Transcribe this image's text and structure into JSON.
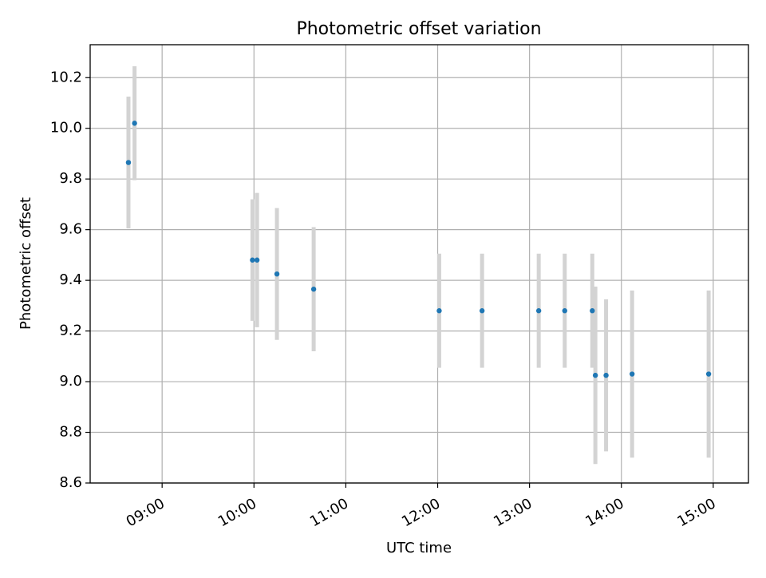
{
  "chart_data": {
    "type": "scatter",
    "title": "Photometric offset variation",
    "xlabel": "UTC time",
    "ylabel": "Photometric offset",
    "x_tick_labels": [
      "09:00",
      "10:00",
      "11:00",
      "12:00",
      "13:00",
      "14:00",
      "15:00"
    ],
    "x_ticks": [
      "09:00",
      "10:00",
      "11:00",
      "12:00",
      "13:00",
      "14:00",
      "15:00"
    ],
    "xlim": [
      "08:13",
      "15:23"
    ],
    "y_tick_labels": [
      "8.6",
      "8.8",
      "9.0",
      "9.2",
      "9.4",
      "9.6",
      "9.8",
      "10.0",
      "10.2"
    ],
    "y_ticks": [
      8.6,
      8.8,
      9.0,
      9.2,
      9.4,
      9.6,
      9.8,
      10.0,
      10.2
    ],
    "ylim": [
      8.6,
      10.33
    ],
    "grid": true,
    "x_tick_rotation_deg": 30,
    "colors": {
      "point": "#1f77b4",
      "errorbar": "#d3d3d3",
      "grid": "#b0b0b0"
    },
    "series": [
      {
        "x": [
          "08:38",
          "08:42",
          "09:59",
          "10:02",
          "10:15",
          "10:39",
          "12:01",
          "12:29",
          "13:06",
          "13:23",
          "13:41",
          "13:43",
          "13:50",
          "14:07",
          "14:57"
        ],
        "y": [
          9.865,
          10.02,
          9.48,
          9.48,
          9.425,
          9.365,
          9.28,
          9.28,
          9.28,
          9.28,
          9.28,
          9.025,
          9.025,
          9.03,
          9.03
        ],
        "yerr": [
          0.26,
          0.225,
          0.24,
          0.265,
          0.26,
          0.245,
          0.225,
          0.225,
          0.225,
          0.225,
          0.225,
          0.35,
          0.3,
          0.33,
          0.33
        ]
      }
    ]
  }
}
